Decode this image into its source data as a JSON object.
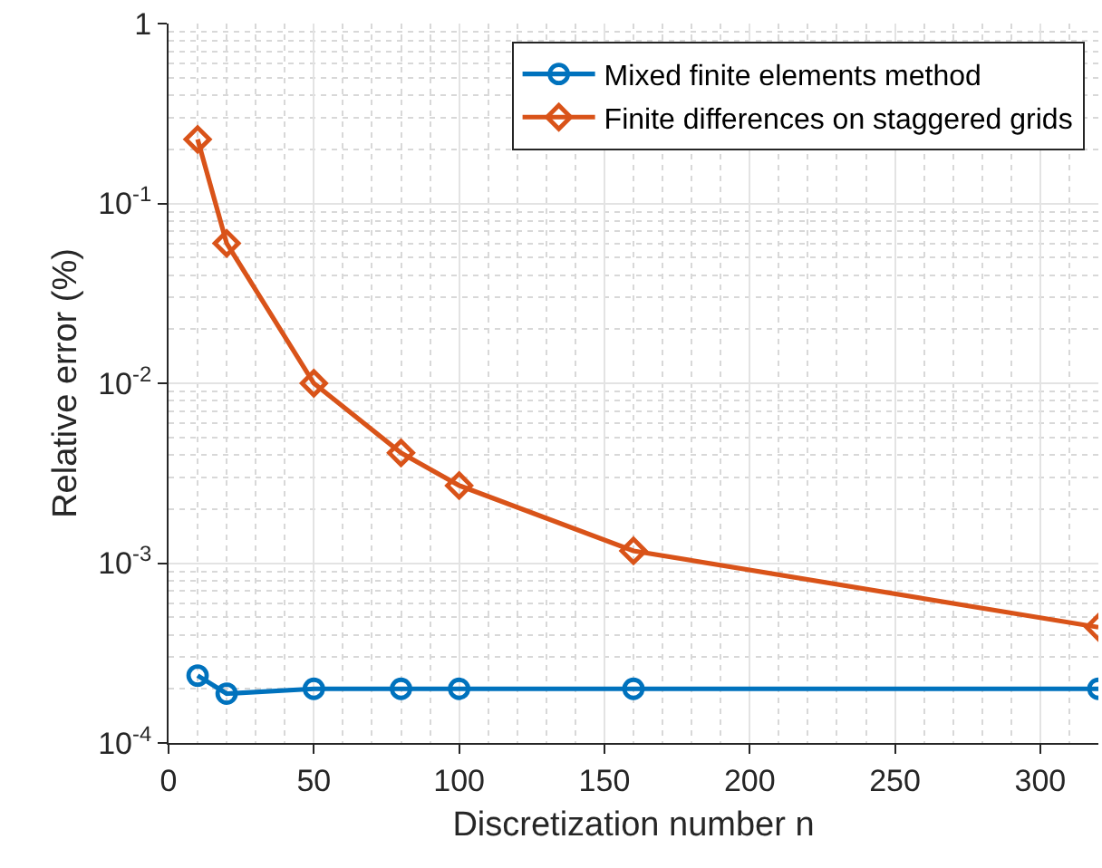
{
  "chart_data": {
    "type": "line",
    "xlabel": "Discretization number n",
    "ylabel": "Relative error (%)",
    "log": "y",
    "grid": true,
    "legend": "top right",
    "xlim": [
      0,
      320
    ],
    "xticks": [
      0,
      50,
      100,
      150,
      200,
      250,
      300
    ],
    "ylim": [
      0.0001,
      1
    ],
    "yticks": [
      {
        "value": 0.0001,
        "label": "10$^{-4}$"
      },
      {
        "value": 0.001,
        "label": "10$^{-3}$"
      },
      {
        "value": 0.01,
        "label": "10$^{-2}$"
      },
      {
        "value": 0.1,
        "label": "10$^{-1}$"
      },
      1
    ],
    "series": [
      {
        "name": "Mixed finite elements method",
        "color": "#0072bd",
        "marker": "circle",
        "x": [
          10,
          20,
          50,
          80,
          100,
          160,
          320
        ],
        "values": [
          0.000237,
          0.000188,
          0.0002,
          0.0002,
          0.0002,
          0.0002,
          0.0002
        ]
      },
      {
        "name": "Finite differences on staggered grids",
        "color": "#d95319",
        "marker": "diamond",
        "x": [
          10,
          20,
          50,
          80,
          100,
          160,
          320
        ],
        "values": [
          0.227,
          0.06,
          0.01,
          0.0041,
          0.0027,
          0.00117,
          0.00044
        ]
      }
    ]
  }
}
